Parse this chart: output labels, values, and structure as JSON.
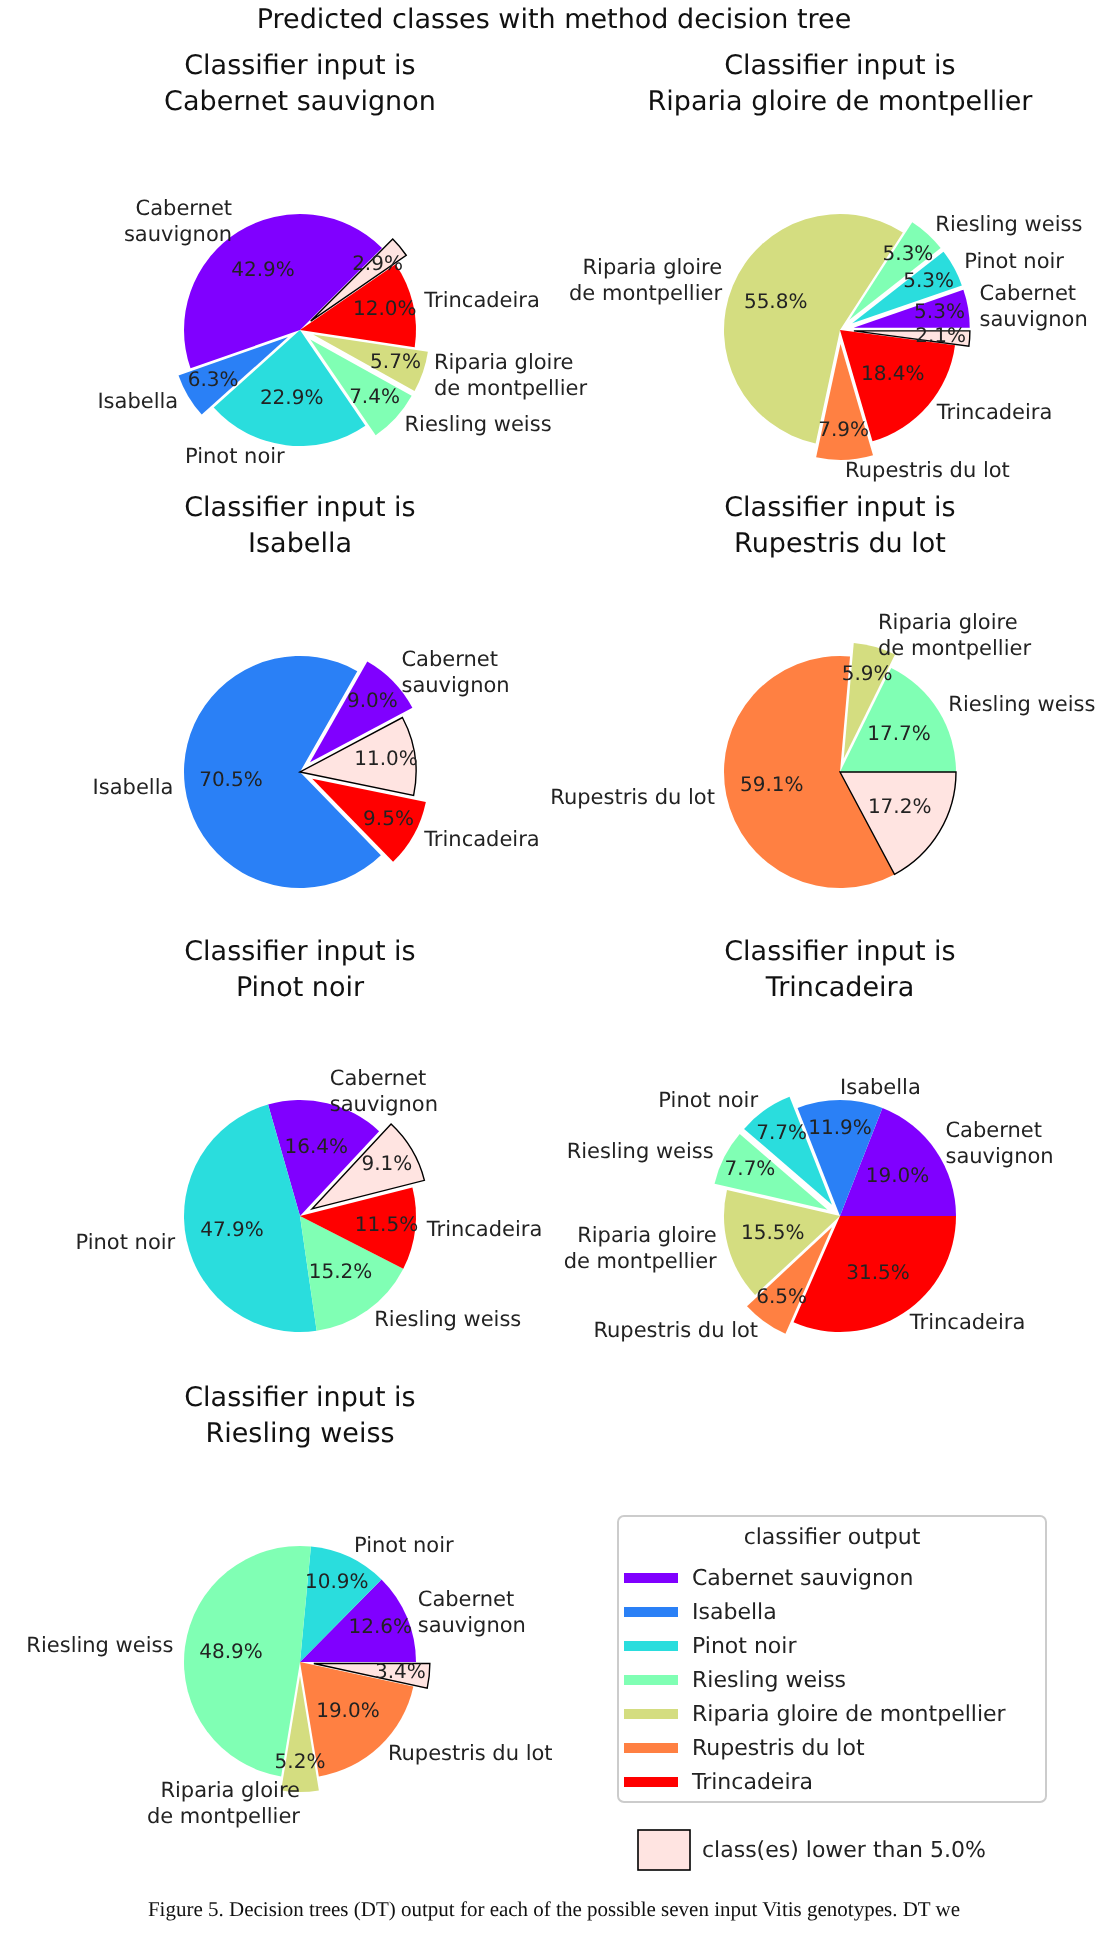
{
  "chart_data": [
    {
      "type": "other",
      "title": "Predicted classes with method decision tree"
    },
    {
      "type": "pie",
      "title": "Classifier input is\nCabernet sauvignon",
      "categories": [
        "Cabernet\nsauvignon",
        "Isabella",
        "Pinot noir",
        "Riesling weiss",
        "Riparia gloire\nde montpellier",
        "Trincadeira",
        null
      ],
      "values": [
        42.9,
        6.3,
        22.9,
        7.4,
        5.7,
        12.0,
        2.9
      ],
      "colors": [
        "#8000ff",
        "#2a80f6",
        "#2adddd",
        "#80ffb4",
        "#d4dd80",
        "#ff0000",
        "#ffe4e1"
      ],
      "value_labels": [
        "42.9%",
        "6.3%",
        "22.9%",
        "7.4%",
        "5.7%",
        "12.0%",
        "2.9%"
      ]
    },
    {
      "type": "pie",
      "title": "Classifier input is\nRiparia gloire de montpellier",
      "categories": [
        "Cabernet\nsauvignon",
        "Pinot noir",
        "Riesling weiss",
        "Riparia gloire\nde montpellier",
        "Rupestris du lot",
        "Trincadeira",
        null
      ],
      "values": [
        5.3,
        5.3,
        5.3,
        55.8,
        7.9,
        18.4,
        2.1
      ],
      "colors": [
        "#8000ff",
        "#2adddd",
        "#80ffb4",
        "#d4dd80",
        "#ff8042",
        "#ff0000",
        "#ffe4e1"
      ],
      "value_labels": [
        "5.3%",
        "5.3%",
        "5.3%",
        "55.8%",
        "7.9%",
        "18.4%",
        "2.1%"
      ]
    },
    {
      "type": "pie",
      "title": "Classifier input is\nIsabella",
      "categories": [
        "Cabernet\nsauvignon",
        "Isabella",
        "Trincadeira",
        null
      ],
      "values": [
        9.0,
        70.5,
        9.5,
        11.0
      ],
      "colors": [
        "#8000ff",
        "#2a80f6",
        "#ff0000",
        "#ffe4e1"
      ],
      "value_labels": [
        "9.0%",
        "70.5%",
        "9.5%",
        "11.0%"
      ]
    },
    {
      "type": "pie",
      "title": "Classifier input is\nRupestris du lot",
      "categories": [
        "Riesling weiss",
        "Riparia gloire\nde montpellier",
        "Rupestris du lot",
        null
      ],
      "values": [
        17.7,
        5.9,
        59.1,
        17.2
      ],
      "colors": [
        "#80ffb4",
        "#d4dd80",
        "#ff8042",
        "#ffe4e1"
      ],
      "value_labels": [
        "17.7%",
        "5.9%",
        "59.1%",
        "17.2%"
      ]
    },
    {
      "type": "pie",
      "title": "Classifier input is\nPinot noir",
      "categories": [
        "Cabernet\nsauvignon",
        "Pinot noir",
        "Riesling weiss",
        "Trincadeira",
        null
      ],
      "values": [
        16.4,
        47.9,
        15.2,
        11.5,
        9.1
      ],
      "colors": [
        "#8000ff",
        "#2adddd",
        "#80ffb4",
        "#ff0000",
        "#ffe4e1"
      ],
      "value_labels": [
        "16.4%",
        "47.9%",
        "15.2%",
        "11.5%",
        "9.1%"
      ]
    },
    {
      "type": "pie",
      "title": "Classifier input is\nTrincadeira",
      "categories": [
        "Cabernet\nsauvignon",
        "Isabella",
        "Pinot noir",
        "Riesling weiss",
        "Riparia gloire\nde montpellier",
        "Rupestris du lot",
        "Trincadeira"
      ],
      "values": [
        19.0,
        11.9,
        7.7,
        7.7,
        15.5,
        6.5,
        31.5
      ],
      "colors": [
        "#8000ff",
        "#2a80f6",
        "#2adddd",
        "#80ffb4",
        "#d4dd80",
        "#ff8042",
        "#ff0000"
      ],
      "value_labels": [
        "19.0%",
        "11.9%",
        "7.7%",
        "7.7%",
        "15.5%",
        "6.5%",
        "31.5%"
      ]
    },
    {
      "type": "pie",
      "title": "Classifier input is\nRiesling weiss",
      "categories": [
        "Cabernet\nsauvignon",
        "Pinot noir",
        "Riesling weiss",
        "Riparia gloire\nde montpellier",
        "Rupestris du lot",
        null
      ],
      "values": [
        12.6,
        10.9,
        48.9,
        5.2,
        19.0,
        3.4
      ],
      "colors": [
        "#8000ff",
        "#2adddd",
        "#80ffb4",
        "#d4dd80",
        "#ff8042",
        "#ffe4e1"
      ],
      "value_labels": [
        "12.6%",
        "10.9%",
        "48.9%",
        "5.2%",
        "19.0%",
        "3.4%"
      ]
    },
    {
      "type": "other",
      "legend_title": "classifier output",
      "categories": [
        "Cabernet sauvignon",
        "Isabella",
        "Pinot noir",
        "Riesling weiss",
        "Riparia gloire de montpellier",
        "Rupestris du lot",
        "Trincadeira",
        "class(es) lower than 5.0%"
      ],
      "colors": [
        "#8000ff",
        "#2a80f6",
        "#2adddd",
        "#80ffb4",
        "#d4dd80",
        "#ff8042",
        "#ff0000",
        "#ffe4e1"
      ]
    },
    {
      "type": "other",
      "annotations": [
        "Figure 5. Decision trees (DT) output for each of the possible seven input Vitis genotypes. DT we"
      ]
    }
  ]
}
